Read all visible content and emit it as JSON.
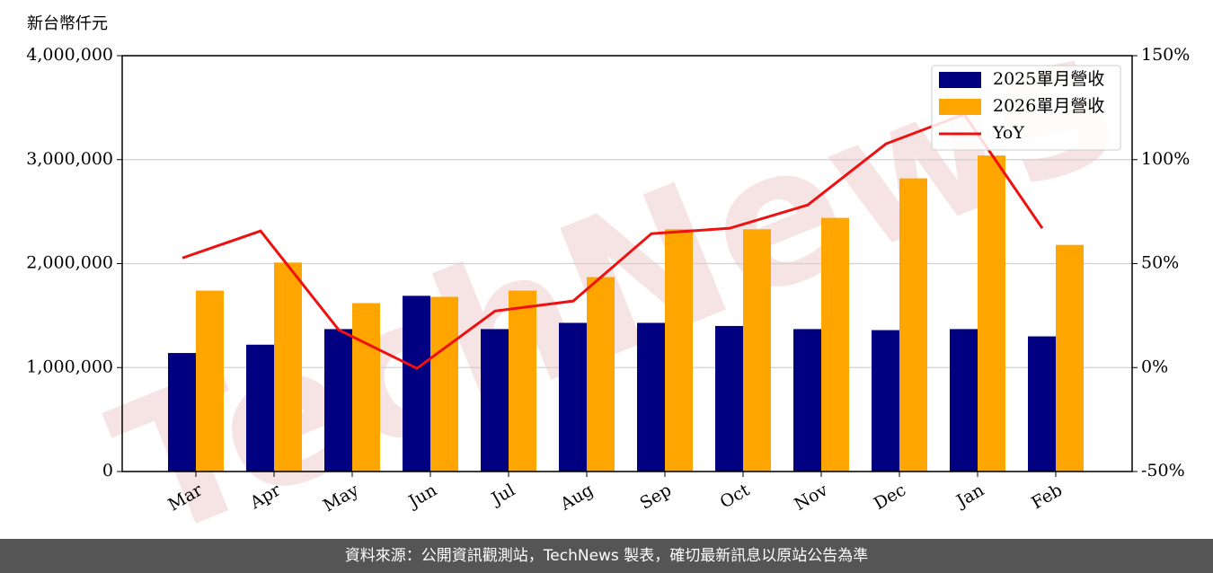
{
  "chart_data": {
    "type": "bar",
    "y_label": "新台幣仟元",
    "watermark": "TechNews",
    "categories": [
      "Mar",
      "Apr",
      "May",
      "Jun",
      "Jul",
      "Aug",
      "Sep",
      "Oct",
      "Nov",
      "Dec",
      "Jan",
      "Feb"
    ],
    "series": [
      {
        "name": "2025單月營收",
        "color": "#000080",
        "values": [
          1140000,
          1220000,
          1370000,
          1690000,
          1370000,
          1430000,
          1430000,
          1400000,
          1370000,
          1360000,
          1370000,
          1300000
        ]
      },
      {
        "name": "2026單月營收",
        "color": "#ffa500",
        "values": [
          1740000,
          2010000,
          1620000,
          1680000,
          1740000,
          1870000,
          2330000,
          2330000,
          2440000,
          2820000,
          3040000,
          2180000
        ]
      },
      {
        "name": "YoY",
        "type": "line",
        "axis": "y2",
        "color": "#ee1111",
        "values": [
          52.7,
          65.7,
          18.1,
          -0.4,
          27.2,
          32,
          64.4,
          67,
          78.2,
          107.6,
          121.8,
          67
        ]
      }
    ],
    "ylim": [
      0,
      4000000
    ],
    "yticks": [
      0,
      {
        "value": 1000000,
        "label": "1,000,000"
      },
      {
        "value": 2000000,
        "label": "2,000,000"
      },
      {
        "value": 3000000,
        "label": "3,000,000"
      },
      {
        "value": 4000000,
        "label": "4,000,000"
      }
    ],
    "y2lim": [
      -50,
      150
    ],
    "y2ticks": [
      {
        "value": -50,
        "label": "-50%"
      },
      {
        "value": 0,
        "label": "0%"
      },
      {
        "value": 50,
        "label": "50%"
      },
      {
        "value": 100,
        "label": "100%"
      },
      {
        "value": 150,
        "label": "150%"
      }
    ],
    "grid": true,
    "legend": "upper right"
  },
  "footer": "資料來源：公開資訊觀測站，TechNews 製表，確切最新訊息以原站公告為準"
}
